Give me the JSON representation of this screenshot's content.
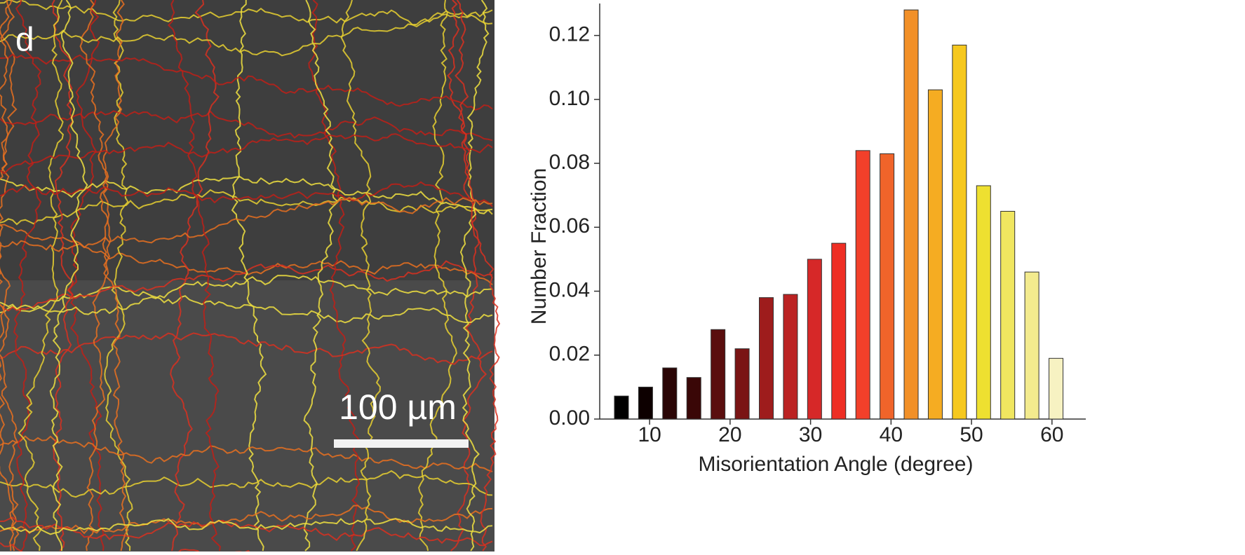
{
  "image": {
    "panel_label": "d",
    "scale_bar": "100 µm"
  },
  "chart_data": {
    "type": "bar",
    "xlabel": "Misorientation Angle (degree)",
    "ylabel": "Number Fraction",
    "x": [
      6.5,
      9.5,
      12.5,
      15.5,
      18.5,
      21.5,
      24.5,
      27.5,
      30.5,
      33.5,
      36.5,
      39.5,
      42.5,
      45.5,
      48.5,
      51.5,
      54.5,
      57.5,
      60.5
    ],
    "values": [
      0.0072,
      0.01,
      0.016,
      0.013,
      0.028,
      0.022,
      0.038,
      0.039,
      0.05,
      0.055,
      0.084,
      0.083,
      0.128,
      0.103,
      0.117,
      0.073,
      0.065,
      0.046,
      0.019
    ],
    "colors": [
      "#000000",
      "#0d0000",
      "#2a0505",
      "#3a0707",
      "#5a0e0e",
      "#7a1414",
      "#9e1c1c",
      "#bb2222",
      "#d62828",
      "#ee2e24",
      "#f2402a",
      "#f0642a",
      "#f29028",
      "#f5ac22",
      "#f6c81e",
      "#eee030",
      "#f0e660",
      "#f3eb8e",
      "#f7f2c2"
    ],
    "xlim": [
      3.8,
      64.2
    ],
    "ylim": [
      0,
      0.13
    ],
    "xticks": [
      10,
      20,
      30,
      40,
      50,
      60
    ],
    "yticks": [
      {
        "value": 0,
        "label": "0.00"
      },
      {
        "value": 0.02,
        "label": "0.02"
      },
      {
        "value": 0.04,
        "label": "0.04"
      },
      {
        "value": 0.06,
        "label": "0.06"
      },
      {
        "value": 0.08,
        "label": "0.08"
      },
      {
        "value": 0.1,
        "label": "0.10"
      },
      {
        "value": 0.12,
        "label": "0.12"
      }
    ]
  }
}
